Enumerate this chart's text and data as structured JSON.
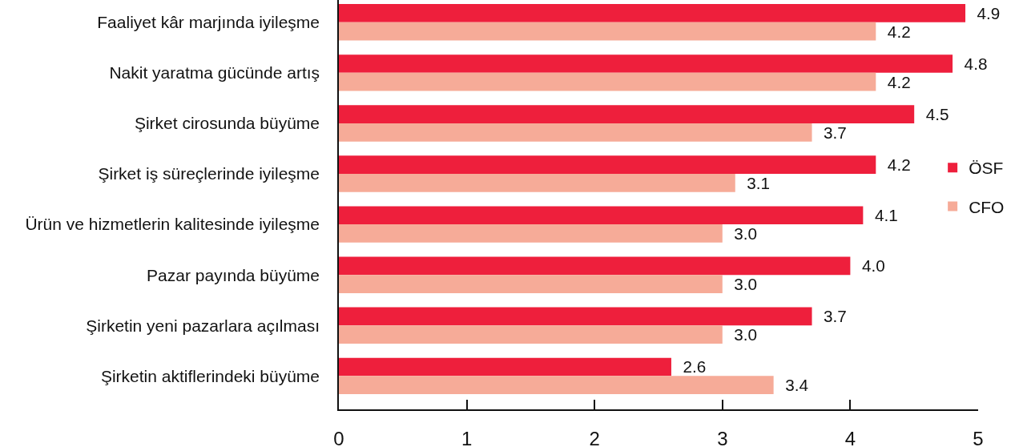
{
  "chart_data": {
    "type": "bar",
    "orientation": "horizontal",
    "categories": [
      "Faaliyet kâr marjında iyileşme",
      "Nakit yaratma gücünde artış",
      "Şirket cirosunda büyüme",
      "Şirket iş süreçlerinde iyileşme",
      "Ürün ve hizmetlerin kalitesinde iyileşme",
      "Pazar payında büyüme",
      "Şirketin yeni pazarlara açılması",
      "Şirketin aktiflerindeki büyüme"
    ],
    "series": [
      {
        "name": "ÖSF",
        "color": "#ee1f3c",
        "values": [
          4.9,
          4.8,
          4.5,
          4.2,
          4.1,
          4.0,
          3.7,
          2.6
        ],
        "value_labels": [
          "4.9",
          "4.8",
          "4.5",
          "4.2",
          "4.1",
          "4.0",
          "3.7",
          "2.6"
        ]
      },
      {
        "name": "CFO",
        "color": "#f6ab98",
        "values": [
          4.2,
          4.2,
          3.7,
          3.1,
          3.0,
          3.0,
          3.0,
          3.4
        ],
        "value_labels": [
          "4.2",
          "4.2",
          "3.7",
          "3.1",
          "3.0",
          "3.0",
          "3.0",
          "3.4"
        ]
      }
    ],
    "xlim": [
      0,
      5
    ],
    "xticks": [
      0,
      1,
      2,
      3,
      4,
      5
    ],
    "legend": "right"
  }
}
